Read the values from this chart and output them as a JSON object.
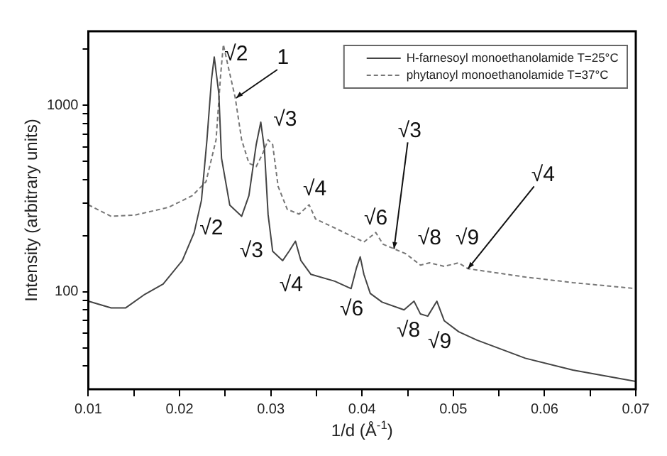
{
  "chart_data": {
    "type": "line",
    "xlabel": "1/d (Å$^{-1}$)",
    "ylabel": "Intensity (arbitrary units)",
    "log": "y",
    "grid": false,
    "legend": "top right",
    "marker": "none",
    "xlim": [
      0.01,
      0.07
    ],
    "ylim": [
      30,
      2500
    ],
    "xticks": [
      0.01,
      {
        "value": 0.015,
        "label": null
      },
      0.02,
      {
        "value": 0.025,
        "label": null
      },
      0.03,
      {
        "value": 0.035,
        "label": null
      },
      0.04,
      {
        "value": 0.045,
        "label": null
      },
      0.05,
      {
        "value": 0.055,
        "label": null
      },
      0.06,
      {
        "value": 0.065,
        "label": null
      },
      0.07
    ],
    "yticks": [
      {
        "value": 40,
        "label": null
      },
      {
        "value": 50,
        "label": null
      },
      {
        "value": 60,
        "label": null
      },
      {
        "value": 70,
        "label": null
      },
      {
        "value": 80,
        "label": null
      },
      {
        "value": 90,
        "label": null
      },
      100,
      {
        "value": 200,
        "label": null
      },
      {
        "value": 300,
        "label": null
      },
      {
        "value": 400,
        "label": null
      },
      {
        "value": 500,
        "label": null
      },
      {
        "value": 600,
        "label": null
      },
      {
        "value": 700,
        "label": null
      },
      {
        "value": 800,
        "label": null
      },
      {
        "value": 900,
        "label": null
      },
      1000,
      {
        "value": 2000,
        "label": null
      }
    ],
    "series": [
      {
        "name": "H-farnesoyl monoethanolamide T=25°C",
        "color": "#444444",
        "line_style": "solid",
        "x": [
          0.01,
          0.0125,
          0.0141,
          0.0162,
          0.0182,
          0.0203,
          0.0216,
          0.0224,
          0.023,
          0.0235,
          0.0238,
          0.0243,
          0.0246,
          0.0255,
          0.0268,
          0.0276,
          0.0284,
          0.0289,
          0.0293,
          0.0297,
          0.0302,
          0.0313,
          0.032,
          0.0327,
          0.0333,
          0.0344,
          0.037,
          0.0388,
          0.0394,
          0.0398,
          0.0402,
          0.0409,
          0.0422,
          0.0446,
          0.0457,
          0.0464,
          0.0472,
          0.0482,
          0.049,
          0.0506,
          0.0526,
          0.0579,
          0.0631,
          0.07
        ],
        "values": [
          89,
          82,
          82,
          97,
          110,
          147,
          208,
          310,
          654,
          1380,
          1820,
          1160,
          520,
          292,
          254,
          328,
          617,
          813,
          583,
          260,
          165,
          147,
          165,
          187,
          147,
          124,
          114,
          104,
          135,
          154,
          124,
          98,
          88,
          80,
          89,
          76,
          74,
          89,
          70,
          61,
          55,
          44,
          38,
          33
        ]
      },
      {
        "name": "phytanoyl monoethanolamide T=37°C",
        "color": "#777777",
        "line_style": "dashed",
        "x": [
          0.01,
          0.0125,
          0.0151,
          0.0188,
          0.0214,
          0.0229,
          0.024,
          0.0245,
          0.0248,
          0.0253,
          0.0261,
          0.0268,
          0.0276,
          0.0284,
          0.0291,
          0.0297,
          0.0302,
          0.0308,
          0.0318,
          0.0331,
          0.0342,
          0.0349,
          0.037,
          0.0402,
          0.0415,
          0.0423,
          0.0448,
          0.0464,
          0.0474,
          0.049,
          0.0506,
          0.0516,
          0.0579,
          0.0631,
          0.07
        ],
        "values": [
          293,
          254,
          258,
          284,
          328,
          390,
          654,
          1460,
          2120,
          1640,
          1100,
          654,
          490,
          470,
          550,
          654,
          617,
          368,
          277,
          261,
          293,
          246,
          220,
          185,
          208,
          180,
          160,
          139,
          143,
          137,
          143,
          133,
          120,
          112,
          104
        ]
      }
    ],
    "annotations": [
      {
        "text": "√2",
        "x": 0.0248,
        "y": 2120
      },
      {
        "text": "√3",
        "x": 0.0297,
        "y": 654
      },
      {
        "text": "√4",
        "x": 0.0342,
        "y": 293
      },
      {
        "text": "√6",
        "x": 0.0415,
        "y": 208
      },
      {
        "text": "√8",
        "x": 0.0474,
        "y": 143
      },
      {
        "text": "√9",
        "x": 0.0506,
        "y": 143
      },
      {
        "text": "√2",
        "x": 0.0224,
        "y": 310
      },
      {
        "text": "√3",
        "x": 0.0302,
        "y": 165
      },
      {
        "text": "√4",
        "x": 0.0327,
        "y": 187
      },
      {
        "text": "√6",
        "x": 0.0398,
        "y": 154
      },
      {
        "text": "√8",
        "x": 0.0457,
        "y": 89
      },
      {
        "text": "√9",
        "x": 0.0482,
        "y": 89
      },
      {
        "text": "1",
        "x": 0.0262,
        "y": 1096
      },
      {
        "text": "√3",
        "x": 0.0435,
        "y": 170
      },
      {
        "text": "√4",
        "x": 0.0516,
        "y": 133
      }
    ]
  }
}
